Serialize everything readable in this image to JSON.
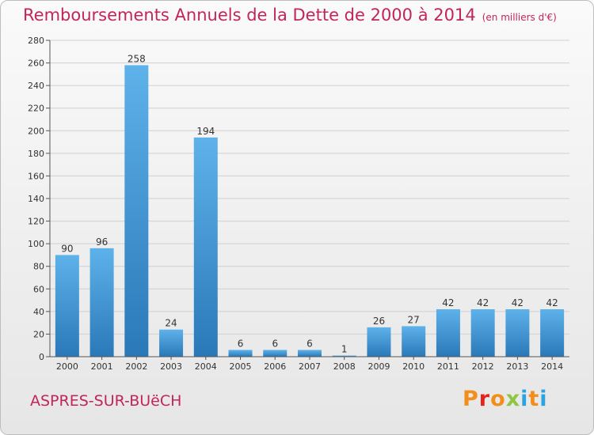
{
  "header": {
    "title": "Remboursements Annuels de la Dette de 2000 à 2014",
    "unit": "(en milliers d'€)"
  },
  "footer": {
    "commune": "ASPRES-SUR-BUëCH",
    "logo": "Proxiti",
    "logo_colors": [
      "#f28e1c",
      "#e2241d",
      "#f28e1c",
      "#8dc63f",
      "#2aa4e0",
      "#f28e1c",
      "#2aa4e0"
    ]
  },
  "colors": {
    "bar_light": "#5eb2ea",
    "bar_dark": "#2a78b8",
    "title": "#c2255c",
    "grid": "#d0d0d0"
  },
  "chart_data": {
    "type": "bar",
    "title": "Remboursements Annuels de la Dette de 2000 à 2014",
    "ylabel": "",
    "xlabel": "",
    "ylim": [
      0,
      280
    ],
    "yticks": [
      0,
      20,
      40,
      60,
      80,
      100,
      120,
      140,
      160,
      180,
      200,
      220,
      240,
      260,
      280
    ],
    "grid": true,
    "categories": [
      "2000",
      "2001",
      "2002",
      "2003",
      "2004",
      "2005",
      "2006",
      "2007",
      "2008",
      "2009",
      "2010",
      "2011",
      "2012",
      "2013",
      "2014"
    ],
    "values": [
      90,
      96,
      258,
      24,
      194,
      6,
      6,
      6,
      1,
      26,
      27,
      42,
      42,
      42,
      42
    ]
  }
}
